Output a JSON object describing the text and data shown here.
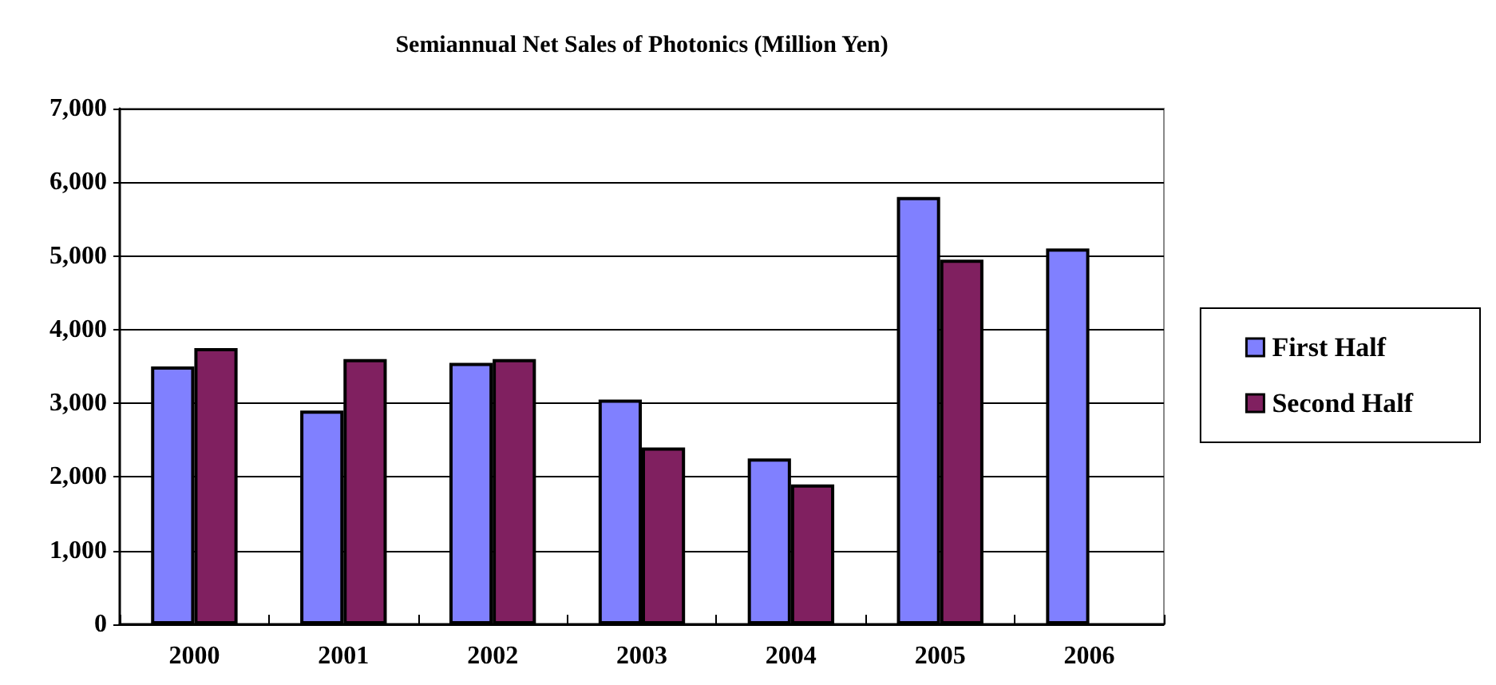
{
  "chart_data": {
    "type": "bar",
    "title": "Semiannual Net Sales of Photonics (Million Yen)",
    "categories": [
      "2000",
      "2001",
      "2002",
      "2003",
      "2004",
      "2005",
      "2006"
    ],
    "series": [
      {
        "name": "First Half",
        "color": "#8080ff",
        "values": [
          3500,
          2900,
          3550,
          3050,
          2250,
          5800,
          5100
        ]
      },
      {
        "name": "Second Half",
        "color": "#802060",
        "values": [
          3750,
          3600,
          3600,
          2400,
          1900,
          4950,
          null
        ]
      }
    ],
    "ylim": [
      0,
      7000
    ],
    "yticks": [
      {
        "value": 0,
        "label": "0"
      },
      {
        "value": 1000,
        "label": "1,000"
      },
      {
        "value": 2000,
        "label": "2,000"
      },
      {
        "value": 3000,
        "label": "3,000"
      },
      {
        "value": 4000,
        "label": "4,000"
      },
      {
        "value": 5000,
        "label": "5,000"
      },
      {
        "value": 6000,
        "label": "6,000"
      },
      {
        "value": 7000,
        "label": "7,000"
      }
    ],
    "grid": "y",
    "legend": "right"
  }
}
